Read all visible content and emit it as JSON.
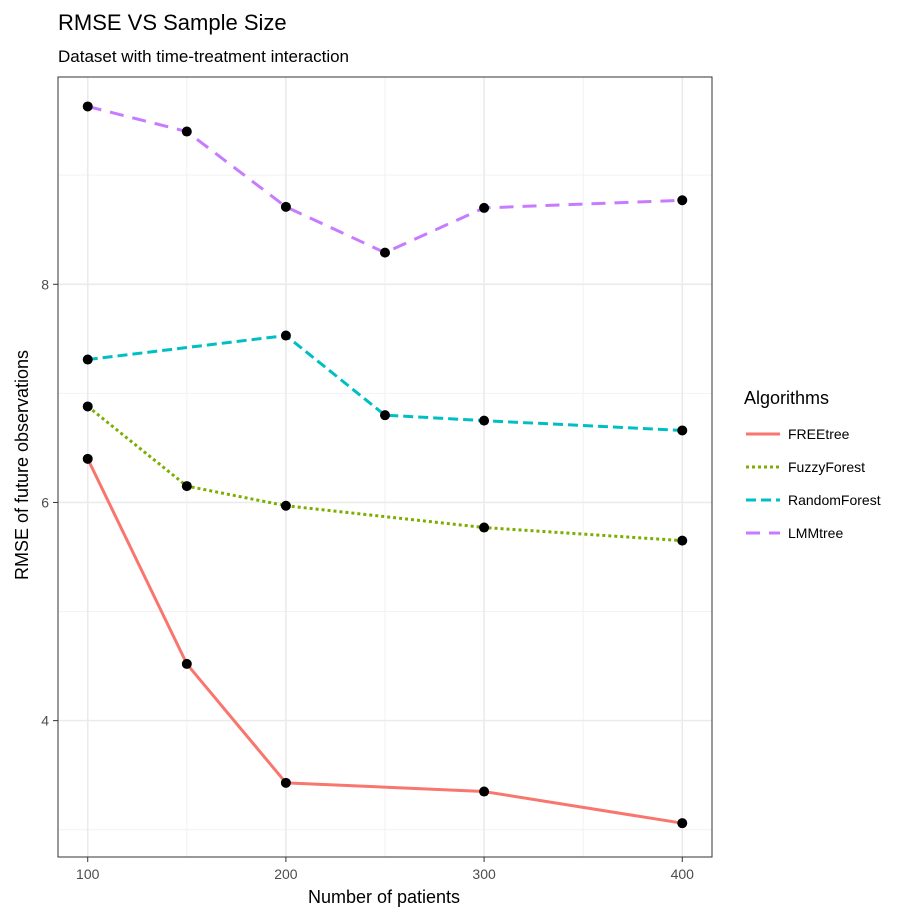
{
  "chart_data": {
    "type": "line",
    "title": "RMSE VS Sample Size",
    "subtitle": "Dataset with time-treatment interaction",
    "xlabel": "Number of patients",
    "ylabel": "RMSE of future observations",
    "xlim": [
      85,
      415
    ],
    "ylim": [
      2.75,
      9.9
    ],
    "x_ticks": [
      100,
      200,
      300,
      400
    ],
    "y_ticks": [
      4,
      6,
      8
    ],
    "grid": true,
    "legend": {
      "title": "Algorithms",
      "position": "right"
    },
    "series": [
      {
        "name": "FREEtree",
        "color": "#F8766D",
        "dash": "solid",
        "x": [
          100,
          150,
          200,
          300,
          400
        ],
        "y": [
          6.4,
          4.52,
          3.43,
          3.35,
          3.06
        ]
      },
      {
        "name": "FuzzyForest",
        "color": "#7CAE00",
        "dash": "dotted",
        "x": [
          100,
          150,
          200,
          300,
          400
        ],
        "y": [
          6.88,
          6.15,
          5.97,
          5.77,
          5.65
        ]
      },
      {
        "name": "RandomForest",
        "color": "#00BFC4",
        "dash": "dashed",
        "x": [
          100,
          200,
          250,
          300,
          400
        ],
        "y": [
          7.31,
          7.53,
          6.8,
          6.75,
          6.66
        ]
      },
      {
        "name": "LMMtree",
        "color": "#C77CFF",
        "dash": "longdash",
        "x": [
          100,
          150,
          200,
          250,
          300,
          400
        ],
        "y": [
          9.63,
          9.4,
          8.71,
          8.29,
          8.7,
          8.77
        ]
      }
    ]
  }
}
